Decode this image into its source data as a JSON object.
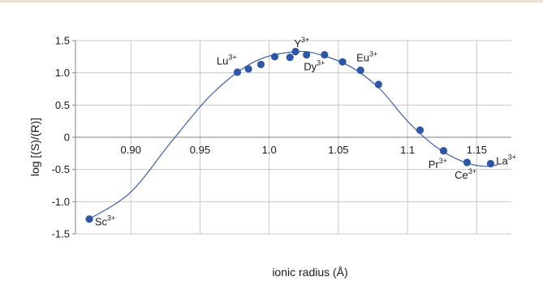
{
  "chart_data": {
    "type": "scatter",
    "title": "",
    "xlabel": "ionic radius (Å)",
    "ylabel": "log [(S)/(R)]",
    "xlim": [
      0.86,
      1.175
    ],
    "ylim": [
      -1.5,
      1.5
    ],
    "x_ticks": [
      "0.90",
      "0.95",
      "1.0",
      "1.05",
      "1.1",
      "1.15"
    ],
    "x_tick_values": [
      0.9,
      0.95,
      1.0,
      1.05,
      1.1,
      1.15
    ],
    "y_ticks": [
      "1.5",
      "1.0",
      "0.5",
      "0",
      "-0.5",
      "-1.0",
      "-1.5"
    ],
    "y_tick_values": [
      1.5,
      1.0,
      0.5,
      0.0,
      -0.5,
      -1.0,
      -1.5
    ],
    "grid": {
      "x": true,
      "y": true
    },
    "points": [
      {
        "x": 0.87,
        "y": -1.27
      },
      {
        "x": 0.977,
        "y": 1.01
      },
      {
        "x": 0.985,
        "y": 1.06
      },
      {
        "x": 0.994,
        "y": 1.13
      },
      {
        "x": 1.004,
        "y": 1.25
      },
      {
        "x": 1.015,
        "y": 1.24
      },
      {
        "x": 1.019,
        "y": 1.33
      },
      {
        "x": 1.027,
        "y": 1.28
      },
      {
        "x": 1.04,
        "y": 1.28
      },
      {
        "x": 1.053,
        "y": 1.17
      },
      {
        "x": 1.066,
        "y": 1.04
      },
      {
        "x": 1.079,
        "y": 0.82
      },
      {
        "x": 1.109,
        "y": 0.11
      },
      {
        "x": 1.126,
        "y": -0.21
      },
      {
        "x": 1.143,
        "y": -0.39
      },
      {
        "x": 1.16,
        "y": -0.41
      }
    ],
    "fit_curve": {
      "x": [
        0.87,
        0.9,
        0.93,
        0.96,
        0.99,
        1.02,
        1.04,
        1.06,
        1.08,
        1.1,
        1.12,
        1.14,
        1.155,
        1.165
      ],
      "y": [
        -1.27,
        -0.85,
        -0.05,
        0.7,
        1.18,
        1.33,
        1.26,
        1.08,
        0.75,
        0.25,
        -0.14,
        -0.38,
        -0.45,
        -0.43
      ]
    },
    "ion_labels": [
      {
        "base": "Sc",
        "sup": "3+",
        "x": 0.874,
        "y": -1.37
      },
      {
        "base": "Lu",
        "sup": "3+",
        "x": 0.962,
        "y": 1.13
      },
      {
        "base": "Y",
        "sup": "3+",
        "x": 1.018,
        "y": 1.4
      },
      {
        "base": "Dy",
        "sup": "3+",
        "x": 1.025,
        "y": 1.04
      },
      {
        "base": "Eu",
        "sup": "3+",
        "x": 1.063,
        "y": 1.18
      },
      {
        "base": "Pr",
        "sup": "3+",
        "x": 1.115,
        "y": -0.48
      },
      {
        "base": "Ce",
        "sup": "3+",
        "x": 1.134,
        "y": -0.64
      },
      {
        "base": "La",
        "sup": "3+",
        "x": 1.164,
        "y": -0.42
      }
    ],
    "colors": {
      "point": "#2f56a6",
      "curve": "#3a5fb0",
      "grid": "#c8c8c8",
      "axis": "#808080"
    }
  }
}
